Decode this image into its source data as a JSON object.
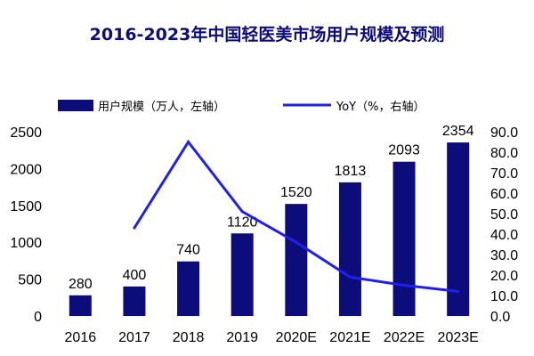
{
  "chart_data": {
    "type": "bar",
    "title": "2016-2023年中国轻医美市场用户规模及预测",
    "categories": [
      "2016",
      "2017",
      "2018",
      "2019",
      "2020E",
      "2021E",
      "2022E",
      "2023E"
    ],
    "series": [
      {
        "name": "用户规模（万人，左轴）",
        "type": "bar",
        "axis": "left",
        "color": "#0c0c7a",
        "values": [
          280,
          400,
          740,
          1120,
          1520,
          1813,
          2093,
          2354
        ]
      },
      {
        "name": "YoY（%，右轴）",
        "type": "line",
        "axis": "right",
        "color": "#2020ee",
        "values": [
          null,
          43,
          85,
          51,
          36,
          19,
          15,
          12
        ]
      }
    ],
    "left_axis": {
      "ylim": [
        0,
        2500
      ],
      "ticks": [
        "0",
        "500",
        "1000",
        "1500",
        "2000",
        "2500"
      ]
    },
    "right_axis": {
      "ylim": [
        0,
        90
      ],
      "ticks": [
        "0.0",
        "10.0",
        "20.0",
        "30.0",
        "40.0",
        "50.0",
        "60.0",
        "70.0",
        "80.0",
        "90.0"
      ]
    },
    "data_labels": [
      "280",
      "400",
      "740",
      "1120",
      "1520",
      "1813",
      "2093",
      "2354"
    ],
    "legend_position": "top",
    "grid": false
  }
}
